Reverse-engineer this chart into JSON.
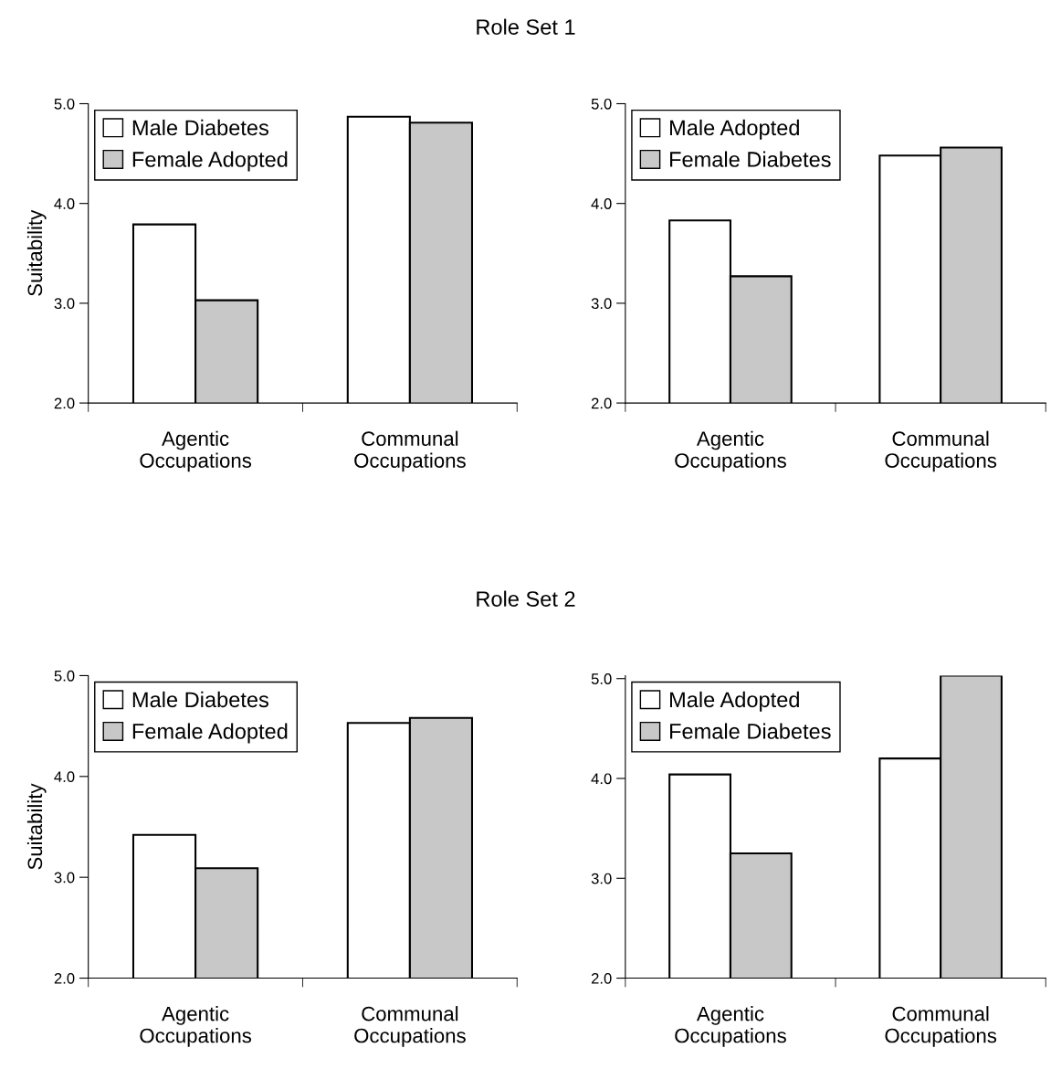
{
  "chart_data": [
    {
      "type": "bar",
      "title": "Role Set 1",
      "ylabel": "Suitability",
      "categories": [
        "Agentic\nOccupations",
        "Communal\nOccupations"
      ],
      "series": [
        {
          "name": "Male Diabetes",
          "color": "#ffffff",
          "values": [
            3.79,
            4.87
          ]
        },
        {
          "name": "Female Adopted",
          "color": "#c8c8c8",
          "values": [
            3.03,
            4.81
          ]
        }
      ],
      "ylim": [
        2.0,
        5.0
      ],
      "yticks": [
        {
          "value": 2.0,
          "label": "2.0"
        },
        {
          "value": 3.0,
          "label": "3.0"
        },
        {
          "value": 4.0,
          "label": "4.0"
        },
        {
          "value": 5.0,
          "label": "5.0"
        }
      ],
      "grid": false,
      "legend": "top left"
    },
    {
      "type": "bar",
      "categories": [
        "Agentic\nOccupations",
        "Communal\nOccupations"
      ],
      "series": [
        {
          "name": "Male Adopted",
          "color": "#ffffff",
          "values": [
            3.83,
            4.48
          ]
        },
        {
          "name": "Female Diabetes",
          "color": "#c8c8c8",
          "values": [
            3.27,
            4.56
          ]
        }
      ],
      "ylim": [
        2.0,
        5.0
      ],
      "yticks": [
        {
          "value": 2.0,
          "label": "2.0"
        },
        {
          "value": 3.0,
          "label": "3.0"
        },
        {
          "value": 4.0,
          "label": "4.0"
        },
        {
          "value": 5.0,
          "label": "5.0"
        }
      ],
      "grid": false,
      "legend": "top left"
    },
    {
      "type": "bar",
      "title": "Role Set 2",
      "ylabel": "Suitability",
      "categories": [
        "Agentic\nOccupations",
        "Communal\nOccupations"
      ],
      "series": [
        {
          "name": "Male Diabetes",
          "color": "#ffffff",
          "values": [
            3.42,
            4.53
          ]
        },
        {
          "name": "Female Adopted",
          "color": "#c8c8c8",
          "values": [
            3.09,
            4.58
          ]
        }
      ],
      "ylim": [
        2.0,
        5.0
      ],
      "yticks": [
        {
          "value": 2.0,
          "label": "2.0"
        },
        {
          "value": 3.0,
          "label": "3.0"
        },
        {
          "value": 4.0,
          "label": "4.0"
        },
        {
          "value": 5.0,
          "label": "5.0"
        }
      ],
      "grid": false,
      "legend": "top left"
    },
    {
      "type": "bar",
      "categories": [
        "Agentic\nOccupations",
        "Communal\nOccupations"
      ],
      "series": [
        {
          "name": "Male Adopted",
          "color": "#ffffff",
          "values": [
            4.04,
            4.2
          ]
        },
        {
          "name": "Female Diabetes",
          "color": "#c8c8c8",
          "values": [
            3.25,
            5.03
          ]
        }
      ],
      "ylim": [
        2.0,
        5.03
      ],
      "yticks": [
        {
          "value": 2.0,
          "label": "2.0"
        },
        {
          "value": 3.0,
          "label": "3.0"
        },
        {
          "value": 4.0,
          "label": "4.0"
        },
        {
          "value": 5.0,
          "label": "5.0"
        }
      ],
      "grid": false,
      "legend": "top left"
    }
  ]
}
